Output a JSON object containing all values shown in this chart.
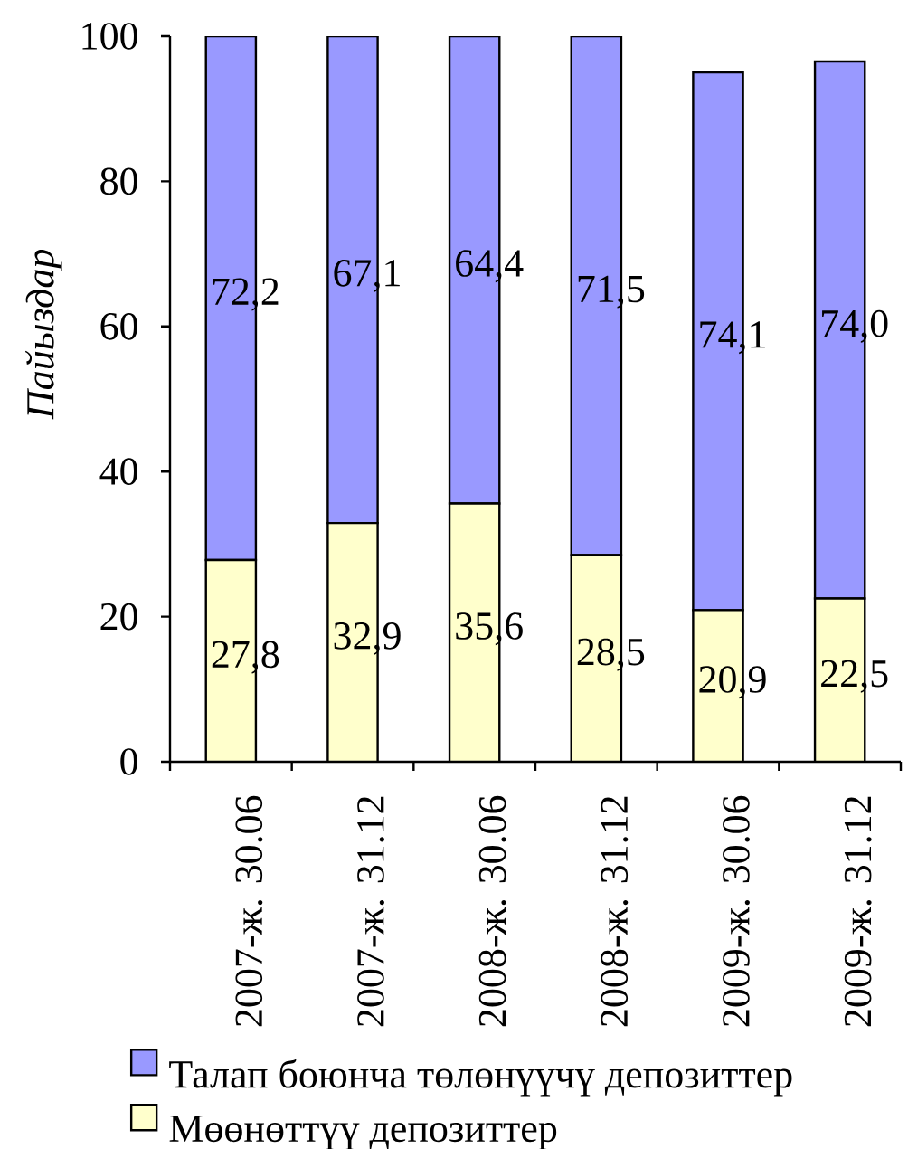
{
  "chart_data": {
    "type": "bar",
    "stacked": true,
    "ylabel": "Пайыздар",
    "categories": [
      "2007-ж. 30.06",
      "2007-ж. 31.12",
      "2008-ж. 30.06",
      "2008-ж. 31.12",
      "2009-ж. 30.06",
      "2009-ж. 31.12"
    ],
    "series": [
      {
        "name": "Мөөнөттүү депозиттер",
        "color": "#ffffcc",
        "values": [
          27.8,
          32.9,
          35.6,
          28.5,
          20.9,
          22.5
        ],
        "value_labels": [
          "27,8",
          "32,9",
          "35,6",
          "28,5",
          "20,9",
          "22,5"
        ]
      },
      {
        "name": "Талап боюнча төлөнүүчү депозиттер",
        "color": "#9999ff",
        "values": [
          72.2,
          67.1,
          64.4,
          71.5,
          74.1,
          74.0
        ],
        "value_labels": [
          "72,2",
          "67,1",
          "64,4",
          "71,5",
          "74,1",
          "74,0"
        ]
      }
    ],
    "ylim": [
      0,
      100
    ],
    "yticks": [
      0,
      20,
      40,
      60,
      80,
      100
    ],
    "legend": "bottom"
  }
}
